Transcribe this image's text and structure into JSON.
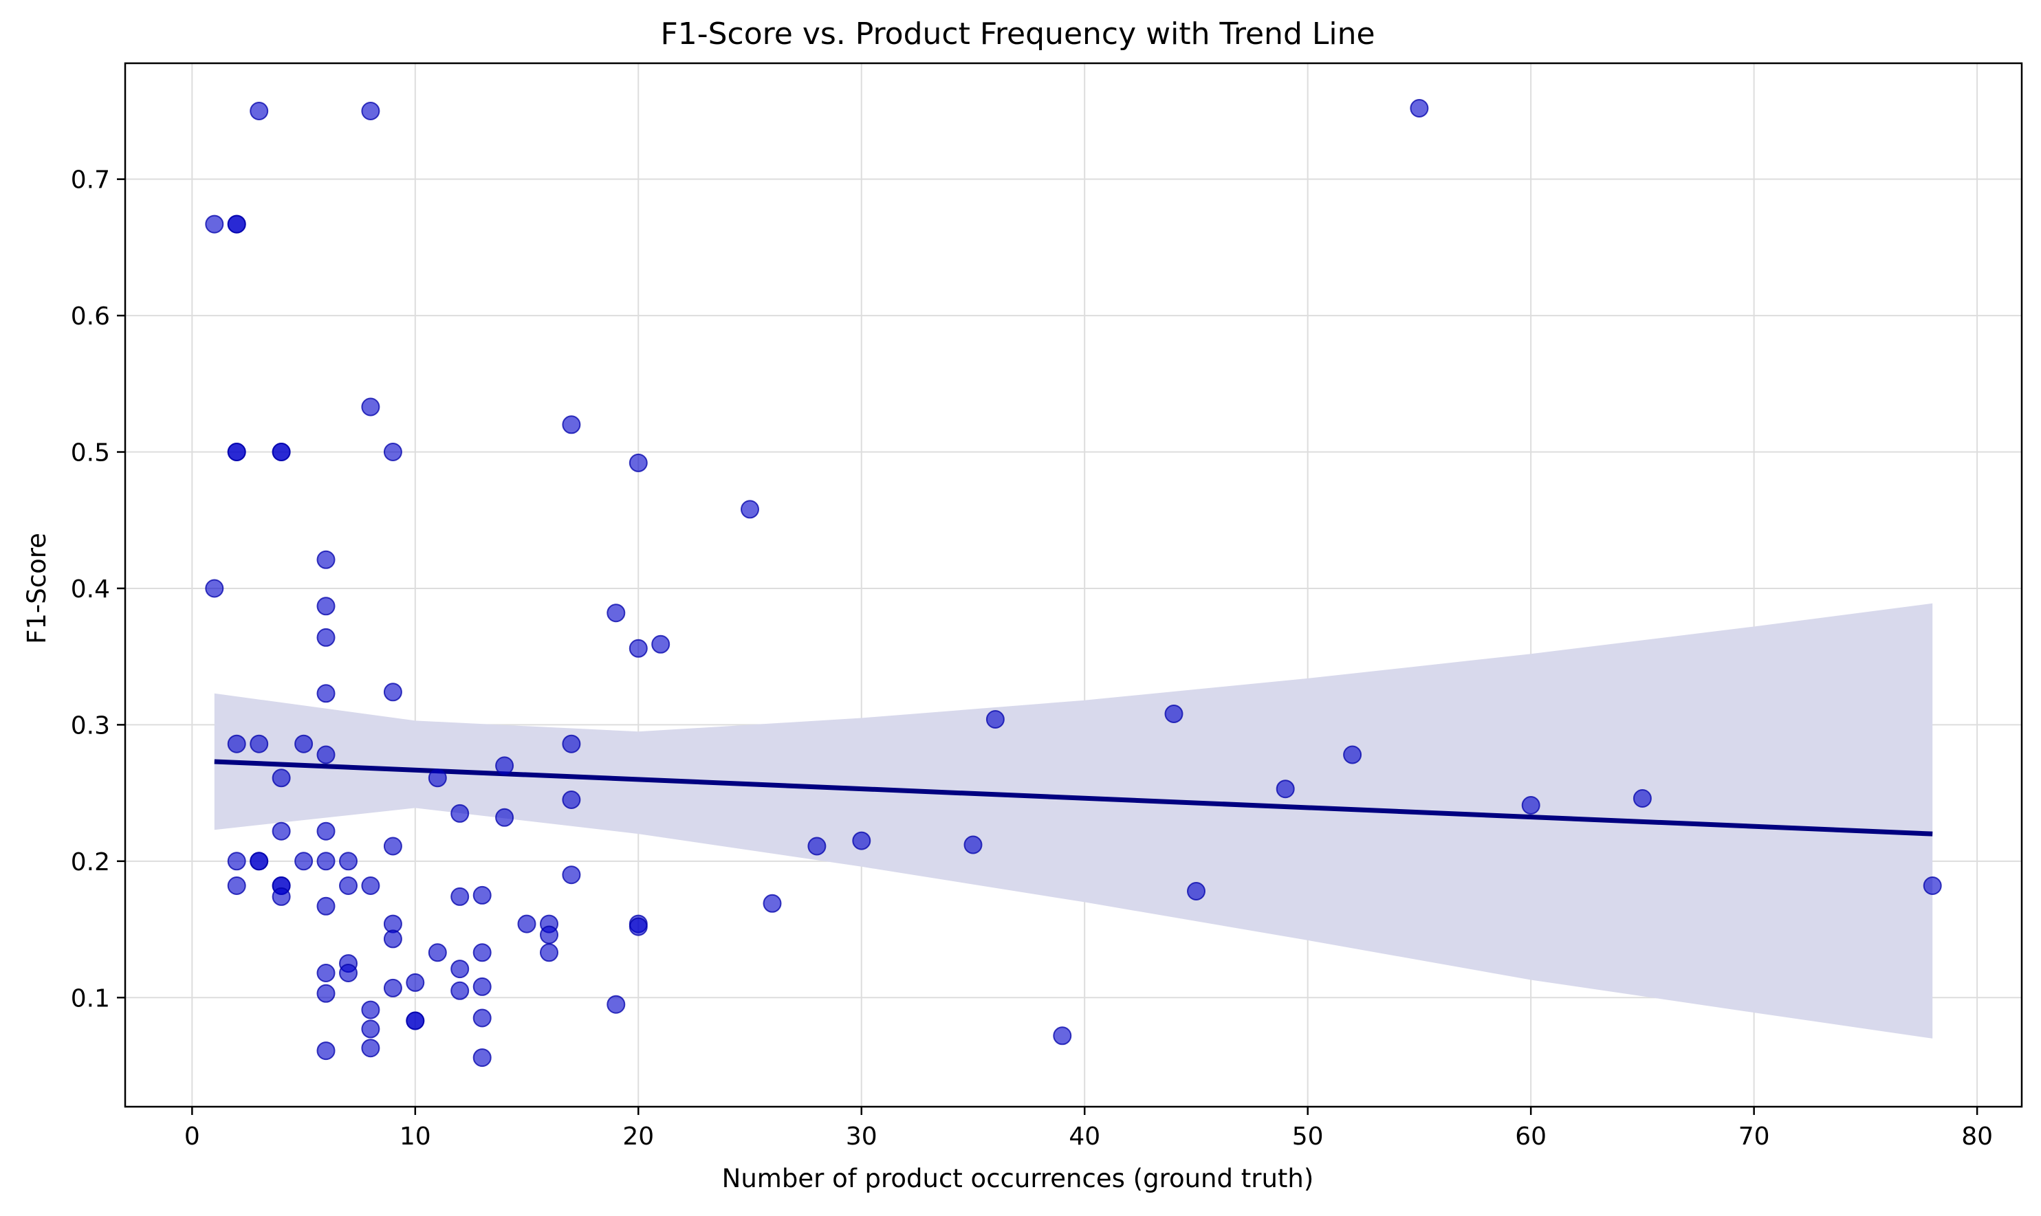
{
  "chart_data": {
    "type": "scatter",
    "title": "F1-Score vs. Product Frequency with Trend Line",
    "xlabel": "Number of product occurrences (ground truth)",
    "ylabel": "F1-Score",
    "xlim": [
      -3,
      82
    ],
    "ylim": [
      0.02,
      0.785
    ],
    "xticks": [
      0,
      10,
      20,
      30,
      40,
      50,
      60,
      70,
      80
    ],
    "yticks": [
      0.1,
      0.2,
      0.3,
      0.4,
      0.5,
      0.6,
      0.7
    ],
    "grid": true,
    "colors": {
      "points": "#0000cc",
      "trend_line": "#000080",
      "confidence_band": "#d8d9ec"
    },
    "series": [
      {
        "points": [
          [
            1,
            0.667
          ],
          [
            1,
            0.4
          ],
          [
            2,
            0.667
          ],
          [
            2,
            0.667
          ],
          [
            2,
            0.5
          ],
          [
            2,
            0.5
          ],
          [
            2,
            0.286
          ],
          [
            2,
            0.2
          ],
          [
            2,
            0.182
          ],
          [
            3,
            0.75
          ],
          [
            3,
            0.286
          ],
          [
            3,
            0.2
          ],
          [
            3,
            0.2
          ],
          [
            4,
            0.5
          ],
          [
            4,
            0.5
          ],
          [
            4,
            0.261
          ],
          [
            4,
            0.222
          ],
          [
            4,
            0.182
          ],
          [
            4,
            0.182
          ],
          [
            4,
            0.174
          ],
          [
            5,
            0.286
          ],
          [
            5,
            0.2
          ],
          [
            6,
            0.421
          ],
          [
            6,
            0.387
          ],
          [
            6,
            0.364
          ],
          [
            6,
            0.323
          ],
          [
            6,
            0.278
          ],
          [
            6,
            0.222
          ],
          [
            6,
            0.2
          ],
          [
            6,
            0.167
          ],
          [
            6,
            0.118
          ],
          [
            6,
            0.103
          ],
          [
            6,
            0.061
          ],
          [
            7,
            0.2
          ],
          [
            7,
            0.182
          ],
          [
            7,
            0.125
          ],
          [
            7,
            0.118
          ],
          [
            8,
            0.75
          ],
          [
            8,
            0.533
          ],
          [
            8,
            0.182
          ],
          [
            8,
            0.091
          ],
          [
            8,
            0.077
          ],
          [
            8,
            0.063
          ],
          [
            9,
            0.5
          ],
          [
            9,
            0.324
          ],
          [
            9,
            0.211
          ],
          [
            9,
            0.154
          ],
          [
            9,
            0.143
          ],
          [
            9,
            0.107
          ],
          [
            10,
            0.111
          ],
          [
            10,
            0.083
          ],
          [
            10,
            0.083
          ],
          [
            11,
            0.261
          ],
          [
            11,
            0.133
          ],
          [
            12,
            0.235
          ],
          [
            12,
            0.174
          ],
          [
            12,
            0.121
          ],
          [
            12,
            0.105
          ],
          [
            13,
            0.175
          ],
          [
            13,
            0.133
          ],
          [
            13,
            0.108
          ],
          [
            13,
            0.085
          ],
          [
            13,
            0.056
          ],
          [
            14,
            0.27
          ],
          [
            14,
            0.232
          ],
          [
            15,
            0.154
          ],
          [
            16,
            0.154
          ],
          [
            16,
            0.146
          ],
          [
            16,
            0.133
          ],
          [
            17,
            0.52
          ],
          [
            17,
            0.286
          ],
          [
            17,
            0.245
          ],
          [
            17,
            0.19
          ],
          [
            19,
            0.382
          ],
          [
            19,
            0.095
          ],
          [
            20,
            0.492
          ],
          [
            20,
            0.356
          ],
          [
            20,
            0.154
          ],
          [
            20,
            0.152
          ],
          [
            21,
            0.359
          ],
          [
            25,
            0.458
          ],
          [
            26,
            0.169
          ],
          [
            28,
            0.211
          ],
          [
            30,
            0.215
          ],
          [
            35,
            0.212
          ],
          [
            36,
            0.304
          ],
          [
            39,
            0.072
          ],
          [
            44,
            0.308
          ],
          [
            45,
            0.178
          ],
          [
            49,
            0.253
          ],
          [
            52,
            0.278
          ],
          [
            55,
            0.752
          ],
          [
            60,
            0.241
          ],
          [
            65,
            0.246
          ],
          [
            78,
            0.182
          ]
        ]
      }
    ],
    "trend_line": {
      "x": [
        1,
        78
      ],
      "y": [
        0.273,
        0.22
      ]
    },
    "confidence_band": {
      "x": [
        1,
        10,
        20,
        30,
        40,
        50,
        60,
        70,
        78
      ],
      "upper": [
        0.323,
        0.303,
        0.295,
        0.305,
        0.318,
        0.334,
        0.352,
        0.372,
        0.389
      ],
      "lower": [
        0.223,
        0.239,
        0.22,
        0.196,
        0.17,
        0.142,
        0.113,
        0.089,
        0.07
      ]
    }
  }
}
